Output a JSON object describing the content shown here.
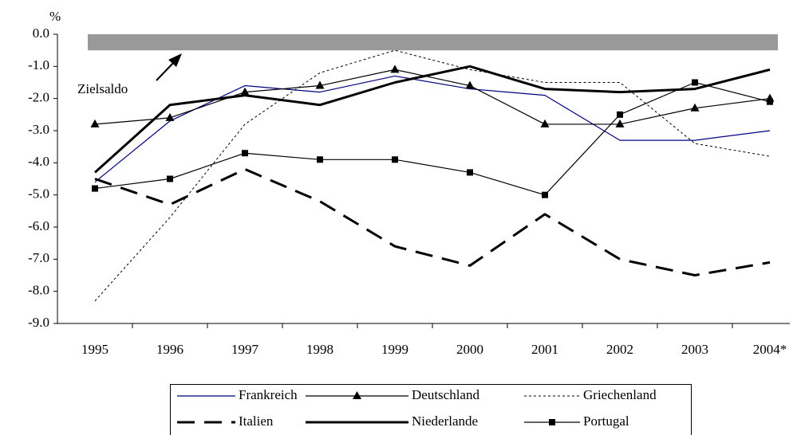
{
  "chart_data": {
    "type": "line",
    "y_unit": "%",
    "categories": [
      "1995",
      "1996",
      "1997",
      "1998",
      "1999",
      "2000",
      "2001",
      "2002",
      "2003",
      "2004*"
    ],
    "series": [
      {
        "name": "Frankreich",
        "color": "#000080",
        "width": 1.2,
        "dash": "solid",
        "marker": "none",
        "values": [
          -4.6,
          -2.7,
          -1.6,
          -1.8,
          -1.3,
          -1.7,
          -1.9,
          -3.3,
          -3.3,
          -3.0
        ]
      },
      {
        "name": "Deutschland",
        "color": "#000000",
        "width": 1.2,
        "dash": "solid",
        "marker": "triangle",
        "values": [
          -2.8,
          -2.6,
          -1.8,
          -1.6,
          -1.1,
          -1.6,
          -2.8,
          -2.8,
          -2.3,
          -2.0
        ]
      },
      {
        "name": "Griechenland",
        "color": "#000000",
        "width": 1,
        "dash": "dotted",
        "marker": "none",
        "values": [
          -8.3,
          -5.7,
          -2.8,
          -1.2,
          -0.5,
          -1.1,
          -1.5,
          -1.5,
          -3.4,
          -3.8
        ]
      },
      {
        "name": "Italien",
        "color": "#000000",
        "width": 3,
        "dash": "dashed",
        "marker": "none",
        "values": [
          -4.5,
          -5.3,
          -4.2,
          -5.2,
          -6.6,
          -7.2,
          -5.6,
          -7.0,
          -7.5,
          -7.1
        ]
      },
      {
        "name": "Niederlande",
        "color": "#000000",
        "width": 3,
        "dash": "solid",
        "marker": "none",
        "values": [
          -4.3,
          -2.2,
          -1.9,
          -2.2,
          -1.5,
          -1.0,
          -1.7,
          -1.8,
          -1.7,
          -1.1
        ]
      },
      {
        "name": "Portugal",
        "color": "#000000",
        "width": 1.2,
        "dash": "solid",
        "marker": "square",
        "values": [
          -4.8,
          -4.5,
          -3.7,
          -3.9,
          -3.9,
          -4.3,
          -5.0,
          -2.5,
          -1.5,
          -2.1
        ]
      }
    ],
    "target_band": {
      "label": "Zielsaldo",
      "from": 0,
      "to": -0.5,
      "color": "#999999"
    },
    "ylim": [
      -9,
      0
    ],
    "yticks": [
      {
        "value": 0,
        "label": "0.0"
      },
      {
        "value": -1,
        "label": "-1.0"
      },
      {
        "value": -2,
        "label": "-2.0"
      },
      {
        "value": -3,
        "label": "-3.0"
      },
      {
        "value": -4,
        "label": "-4.0"
      },
      {
        "value": -5,
        "label": "-5.0"
      },
      {
        "value": -6,
        "label": "-6.0"
      },
      {
        "value": -7,
        "label": "-7.0"
      },
      {
        "value": -8,
        "label": "-8.0"
      },
      {
        "value": -9,
        "label": "-9.0"
      }
    ],
    "legend": "bottom"
  }
}
